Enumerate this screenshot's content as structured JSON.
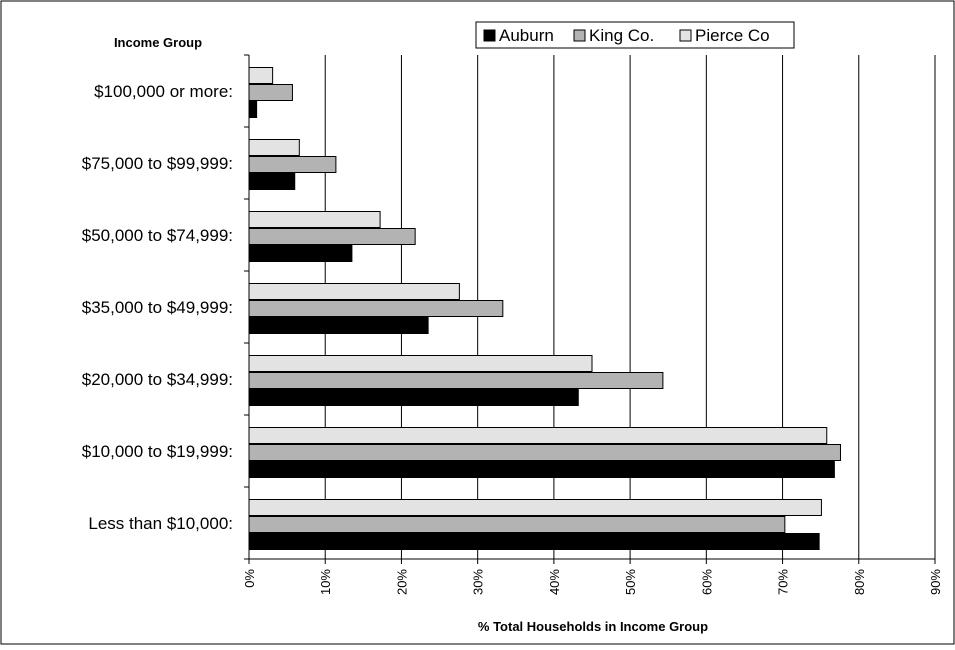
{
  "chart_data": {
    "type": "bar",
    "orientation": "horizontal",
    "categories": [
      "$100,000 or more:",
      "$75,000 to $99,999:",
      "$50,000 to $74,999:",
      "$35,000 to $49,999:",
      "$20,000 to $34,999:",
      "$10,000 to $19,999:",
      "Less than $10,000:"
    ],
    "series": [
      {
        "name": "Auburn",
        "color": "#000000",
        "values": [
          1,
          6,
          13.5,
          23.5,
          43.2,
          76.8,
          74.8
        ]
      },
      {
        "name": "King Co.",
        "color": "#b3b3b3",
        "values": [
          5.7,
          11.4,
          21.8,
          33.3,
          54.3,
          77.6,
          70.3
        ]
      },
      {
        "name": "Pierce Co",
        "color": "#e3e3e3",
        "values": [
          3.1,
          6.6,
          17.2,
          27.6,
          45,
          75.8,
          75.1
        ]
      }
    ],
    "category_axis_title": "Income Group",
    "xlabel": "% Total Households in Income Group",
    "xlim": [
      0,
      90
    ],
    "x_ticks": [
      "0%",
      "10%",
      "20%",
      "30%",
      "40%",
      "50%",
      "60%",
      "70%",
      "80%",
      "90%"
    ],
    "grid": "vertical",
    "legend_position": "top-right"
  }
}
